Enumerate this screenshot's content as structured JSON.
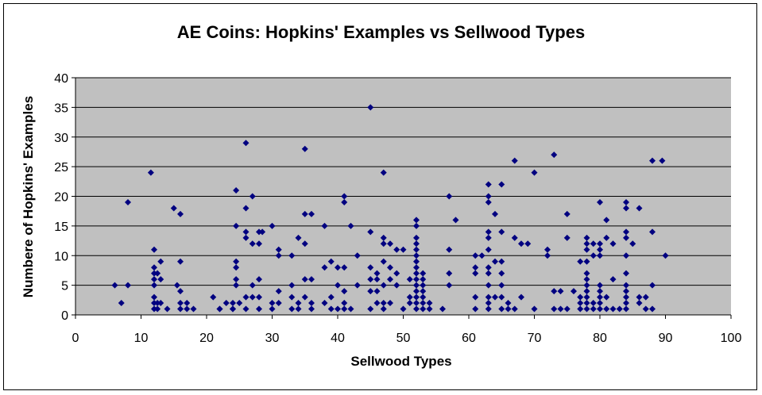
{
  "chart_data": {
    "type": "scatter",
    "title": "AE Coins: Hopkins' Examples vs Sellwood Types",
    "xlabel": "Sellwood Types",
    "ylabel": "Numbere of Hopkins' Examples",
    "xlim": [
      0,
      100
    ],
    "ylim": [
      0,
      40
    ],
    "x_ticks": [
      "0",
      "10",
      "20",
      "30",
      "40",
      "50",
      "60",
      "70",
      "80",
      "90",
      "100"
    ],
    "y_ticks": [
      "0",
      "5",
      "10",
      "15",
      "20",
      "25",
      "30",
      "35",
      "40"
    ],
    "grid": {
      "horizontal": true,
      "vertical": false
    },
    "legend": "none",
    "colors": {
      "marker": "#000080",
      "plot_background": "#c0c0c0",
      "gridline": "#000000"
    },
    "marker": "diamond",
    "series": [
      {
        "points": [
          [
            6,
            5
          ],
          [
            7,
            2
          ],
          [
            8,
            19
          ],
          [
            8,
            5
          ],
          [
            11.5,
            24
          ],
          [
            12,
            11
          ],
          [
            12,
            8
          ],
          [
            12,
            7
          ],
          [
            12,
            6
          ],
          [
            12,
            5
          ],
          [
            12,
            3
          ],
          [
            12,
            2
          ],
          [
            12,
            1
          ],
          [
            12.5,
            1
          ],
          [
            12.5,
            2
          ],
          [
            12.5,
            7
          ],
          [
            13,
            9
          ],
          [
            13,
            6
          ],
          [
            13,
            2
          ],
          [
            14,
            1
          ],
          [
            15,
            18
          ],
          [
            15.5,
            5
          ],
          [
            16,
            17
          ],
          [
            16,
            9
          ],
          [
            16,
            4
          ],
          [
            16,
            2
          ],
          [
            16,
            1
          ],
          [
            17,
            2
          ],
          [
            17,
            1
          ],
          [
            18,
            1
          ],
          [
            21,
            3
          ],
          [
            22,
            1
          ],
          [
            22,
            1
          ],
          [
            23,
            2
          ],
          [
            24,
            1
          ],
          [
            24,
            2
          ],
          [
            24,
            1
          ],
          [
            24.5,
            21
          ],
          [
            24.5,
            15
          ],
          [
            24.5,
            9
          ],
          [
            24.5,
            8
          ],
          [
            24.5,
            6
          ],
          [
            24.5,
            5
          ],
          [
            25,
            2
          ],
          [
            26,
            29
          ],
          [
            26,
            18
          ],
          [
            26,
            14
          ],
          [
            26,
            13
          ],
          [
            26,
            3
          ],
          [
            26,
            1
          ],
          [
            27,
            20
          ],
          [
            27,
            12
          ],
          [
            27,
            5
          ],
          [
            27,
            3
          ],
          [
            28,
            14
          ],
          [
            28,
            12
          ],
          [
            28,
            6
          ],
          [
            28,
            3
          ],
          [
            28,
            1
          ],
          [
            28.5,
            14
          ],
          [
            30,
            15
          ],
          [
            30,
            2
          ],
          [
            30,
            1
          ],
          [
            31,
            11
          ],
          [
            31,
            10
          ],
          [
            31,
            4
          ],
          [
            31,
            2
          ],
          [
            33,
            10
          ],
          [
            33,
            5
          ],
          [
            33,
            3
          ],
          [
            33,
            1
          ],
          [
            34,
            13
          ],
          [
            34,
            2
          ],
          [
            34,
            1
          ],
          [
            35,
            28
          ],
          [
            35,
            17
          ],
          [
            35,
            12
          ],
          [
            35,
            6
          ],
          [
            35,
            3
          ],
          [
            36,
            17
          ],
          [
            36,
            6
          ],
          [
            36,
            2
          ],
          [
            36,
            1
          ],
          [
            38,
            15
          ],
          [
            38,
            8
          ],
          [
            38,
            2
          ],
          [
            39,
            9
          ],
          [
            39,
            3
          ],
          [
            39,
            1
          ],
          [
            40,
            8
          ],
          [
            40,
            5
          ],
          [
            40,
            1
          ],
          [
            41,
            20
          ],
          [
            41,
            19
          ],
          [
            41,
            8
          ],
          [
            41,
            4
          ],
          [
            41,
            2
          ],
          [
            41,
            1
          ],
          [
            42,
            15
          ],
          [
            42,
            1
          ],
          [
            43,
            10
          ],
          [
            43,
            5
          ],
          [
            45,
            35
          ],
          [
            45,
            14
          ],
          [
            45,
            8
          ],
          [
            45,
            6
          ],
          [
            45,
            4
          ],
          [
            45,
            1
          ],
          [
            46,
            7
          ],
          [
            46,
            6
          ],
          [
            46,
            4
          ],
          [
            46,
            2
          ],
          [
            47,
            24
          ],
          [
            47,
            13
          ],
          [
            47,
            12
          ],
          [
            47,
            9
          ],
          [
            47,
            5
          ],
          [
            47,
            2
          ],
          [
            47,
            1
          ],
          [
            48,
            12
          ],
          [
            48,
            8
          ],
          [
            48,
            6
          ],
          [
            48,
            2
          ],
          [
            49,
            11
          ],
          [
            49,
            7
          ],
          [
            49,
            5
          ],
          [
            50,
            11
          ],
          [
            50,
            1
          ],
          [
            51,
            6
          ],
          [
            51,
            3
          ],
          [
            51,
            2
          ],
          [
            52,
            16
          ],
          [
            52,
            15
          ],
          [
            52,
            13
          ],
          [
            52,
            12
          ],
          [
            52,
            11
          ],
          [
            52,
            10
          ],
          [
            52,
            9
          ],
          [
            52,
            8
          ],
          [
            52,
            7
          ],
          [
            52,
            6
          ],
          [
            52,
            5
          ],
          [
            52,
            4
          ],
          [
            52,
            3
          ],
          [
            52,
            2
          ],
          [
            52,
            1
          ],
          [
            53,
            7
          ],
          [
            53,
            6
          ],
          [
            53,
            5
          ],
          [
            53,
            4
          ],
          [
            53,
            3
          ],
          [
            53,
            2
          ],
          [
            53,
            1
          ],
          [
            54,
            2
          ],
          [
            54,
            1
          ],
          [
            56,
            1
          ],
          [
            57,
            20
          ],
          [
            57,
            11
          ],
          [
            57,
            7
          ],
          [
            57,
            5
          ],
          [
            58,
            16
          ],
          [
            61,
            10
          ],
          [
            61,
            8
          ],
          [
            61,
            7
          ],
          [
            61,
            3
          ],
          [
            61,
            1
          ],
          [
            62,
            10
          ],
          [
            63,
            22
          ],
          [
            63,
            20
          ],
          [
            63,
            19
          ],
          [
            63,
            14
          ],
          [
            63,
            13
          ],
          [
            63,
            11
          ],
          [
            63,
            8
          ],
          [
            63,
            7
          ],
          [
            63,
            5
          ],
          [
            63,
            3
          ],
          [
            63,
            2
          ],
          [
            63,
            1
          ],
          [
            64,
            17
          ],
          [
            64,
            9
          ],
          [
            64,
            3
          ],
          [
            65,
            22
          ],
          [
            65,
            14
          ],
          [
            65,
            9
          ],
          [
            65,
            7
          ],
          [
            65,
            5
          ],
          [
            65,
            3
          ],
          [
            65,
            1
          ],
          [
            66,
            2
          ],
          [
            66,
            1
          ],
          [
            67,
            26
          ],
          [
            67,
            13
          ],
          [
            67,
            1
          ],
          [
            68,
            12
          ],
          [
            68,
            3
          ],
          [
            69,
            12
          ],
          [
            70,
            24
          ],
          [
            70,
            1
          ],
          [
            72,
            11
          ],
          [
            72,
            10
          ],
          [
            73,
            27
          ],
          [
            73,
            4
          ],
          [
            73,
            1
          ],
          [
            74,
            4
          ],
          [
            74,
            1
          ],
          [
            75,
            17
          ],
          [
            75,
            1
          ],
          [
            75,
            13
          ],
          [
            76,
            4
          ],
          [
            77,
            9
          ],
          [
            77,
            3
          ],
          [
            77,
            2
          ],
          [
            77,
            1
          ],
          [
            78,
            13
          ],
          [
            78,
            12
          ],
          [
            78,
            11
          ],
          [
            78,
            9
          ],
          [
            78,
            7
          ],
          [
            78,
            6
          ],
          [
            78,
            5
          ],
          [
            78,
            4
          ],
          [
            78,
            3
          ],
          [
            78,
            2
          ],
          [
            78,
            1
          ],
          [
            79,
            12
          ],
          [
            79,
            10
          ],
          [
            79,
            2
          ],
          [
            79,
            1
          ],
          [
            80,
            19
          ],
          [
            80,
            12
          ],
          [
            80,
            11
          ],
          [
            80,
            10
          ],
          [
            80,
            5
          ],
          [
            80,
            4
          ],
          [
            80,
            3
          ],
          [
            80,
            2
          ],
          [
            80,
            1
          ],
          [
            81,
            16
          ],
          [
            81,
            13
          ],
          [
            81,
            3
          ],
          [
            81,
            1
          ],
          [
            82,
            12
          ],
          [
            82,
            6
          ],
          [
            82,
            1
          ],
          [
            83,
            1
          ],
          [
            84,
            19
          ],
          [
            84,
            18
          ],
          [
            84,
            14
          ],
          [
            84,
            13
          ],
          [
            84,
            10
          ],
          [
            84,
            7
          ],
          [
            84,
            5
          ],
          [
            84,
            4
          ],
          [
            84,
            3
          ],
          [
            84,
            2
          ],
          [
            84,
            1
          ],
          [
            85,
            12
          ],
          [
            86,
            18
          ],
          [
            86,
            3
          ],
          [
            86,
            2
          ],
          [
            87,
            3
          ],
          [
            87,
            1
          ],
          [
            88,
            26
          ],
          [
            88,
            14
          ],
          [
            88,
            5
          ],
          [
            88,
            1
          ],
          [
            89.5,
            26
          ],
          [
            90,
            10
          ]
        ]
      }
    ]
  }
}
